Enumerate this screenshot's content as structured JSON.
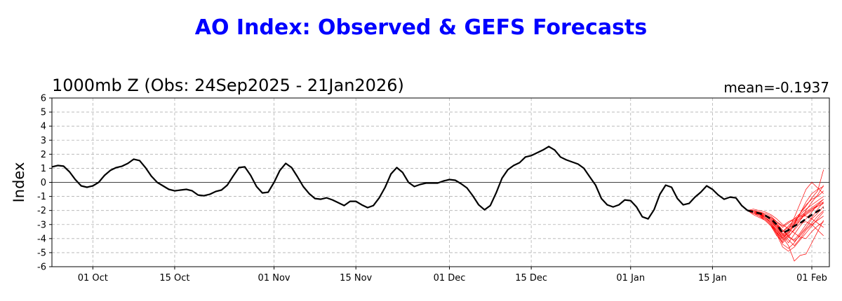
{
  "header": {
    "title": "AO Index: Observed & GEFS Forecasts",
    "subtitle": "1000mb Z (Obs: 24Sep2025 - 21Jan2026)",
    "mean_label": "mean=-0.1937"
  },
  "colors": {
    "title": "#0000ff",
    "observed": "#000000",
    "members": "#ff0000",
    "grid": "#b0b0b0"
  },
  "chart_data": {
    "type": "line",
    "ylabel": "Index",
    "ylim": [
      -6,
      6
    ],
    "yticks": [
      -6,
      -5,
      -4,
      -3,
      -2,
      -1,
      0,
      1,
      2,
      3,
      4,
      5,
      6
    ],
    "x_start": "2025-09-24",
    "x_end": "2026-02-04",
    "xticks": [
      {
        "date": "2025-10-01",
        "label": "01 Oct"
      },
      {
        "date": "2025-10-15",
        "label": "15 Oct"
      },
      {
        "date": "2025-11-01",
        "label": "01 Nov"
      },
      {
        "date": "2025-11-15",
        "label": "15 Nov"
      },
      {
        "date": "2025-12-01",
        "label": "01 Dec"
      },
      {
        "date": "2025-12-15",
        "label": "15 Dec"
      },
      {
        "date": "2026-01-01",
        "label": "01 Jan"
      },
      {
        "date": "2026-01-15",
        "label": "15 Jan"
      },
      {
        "date": "2026-02-01",
        "label": "01 Feb"
      }
    ],
    "grid": true,
    "zero_line": true,
    "observed": {
      "start": "2025-09-24",
      "values": [
        1.1,
        1.2,
        1.15,
        0.75,
        0.2,
        -0.25,
        -0.35,
        -0.25,
        0.0,
        0.5,
        0.85,
        1.05,
        1.15,
        1.35,
        1.65,
        1.55,
        1.05,
        0.45,
        0.0,
        -0.25,
        -0.5,
        -0.6,
        -0.55,
        -0.5,
        -0.6,
        -0.9,
        -0.95,
        -0.85,
        -0.65,
        -0.55,
        -0.2,
        0.45,
        1.05,
        1.1,
        0.5,
        -0.3,
        -0.75,
        -0.7,
        0.0,
        0.85,
        1.35,
        1.05,
        0.4,
        -0.3,
        -0.8,
        -1.15,
        -1.2,
        -1.1,
        -1.25,
        -1.45,
        -1.65,
        -1.35,
        -1.35,
        -1.6,
        -1.8,
        -1.65,
        -1.1,
        -0.35,
        0.6,
        1.05,
        0.7,
        0.0,
        -0.3,
        -0.15,
        -0.05,
        -0.05,
        -0.05,
        0.1,
        0.2,
        0.15,
        -0.1,
        -0.4,
        -0.95,
        -1.6,
        -1.95,
        -1.65,
        -0.75,
        0.3,
        0.9,
        1.2,
        1.4,
        1.8,
        1.9,
        2.1,
        2.3,
        2.55,
        2.3,
        1.8,
        1.6,
        1.45,
        1.3,
        1.0,
        0.4,
        -0.2,
        -1.15,
        -1.6,
        -1.75,
        -1.6,
        -1.25,
        -1.3,
        -1.75,
        -2.45,
        -2.6,
        -1.95,
        -0.85,
        -0.2,
        -0.35,
        -1.15,
        -1.6,
        -1.5,
        -1.05,
        -0.7,
        -0.25,
        -0.5,
        -0.9,
        -1.2,
        -1.05,
        -1.1,
        -1.65,
        -2.0
      ]
    },
    "forecast_start": "2026-01-21",
    "ensemble_mean": {
      "values": [
        -2.0,
        -2.1,
        -2.2,
        -2.35,
        -2.6,
        -3.0,
        -3.6,
        -3.4,
        -3.1,
        -2.9,
        -2.6,
        -2.3,
        -2.05,
        -1.8
      ]
    },
    "members": [
      [
        -2.0,
        -2.1,
        -2.3,
        -2.5,
        -2.9,
        -3.5,
        -4.3,
        -3.9,
        -3.3,
        -2.7,
        -2.0,
        -1.4,
        -0.9,
        -0.2
      ],
      [
        -2.0,
        -2.0,
        -2.1,
        -2.2,
        -2.4,
        -2.8,
        -3.2,
        -2.9,
        -2.6,
        -2.2,
        -1.7,
        -1.1,
        -0.6,
        0.9
      ],
      [
        -2.0,
        -2.2,
        -2.4,
        -2.6,
        -3.0,
        -3.7,
        -4.6,
        -4.9,
        -4.6,
        -4.1,
        -3.6,
        -3.1,
        -2.6,
        -2.1
      ],
      [
        -2.0,
        -1.9,
        -2.0,
        -2.1,
        -2.3,
        -2.6,
        -3.0,
        -3.3,
        -3.6,
        -3.9,
        -4.0,
        -3.5,
        -3.1,
        -2.8
      ],
      [
        -2.0,
        -2.1,
        -2.2,
        -2.4,
        -2.7,
        -3.1,
        -3.5,
        -3.2,
        -2.8,
        -2.3,
        -1.9,
        -1.6,
        -1.3,
        -1.0
      ],
      [
        -2.0,
        -2.3,
        -2.5,
        -2.7,
        -3.1,
        -3.8,
        -4.2,
        -3.7,
        -3.0,
        -2.2,
        -1.4,
        -0.8,
        -0.5,
        -0.3
      ],
      [
        -2.0,
        -2.0,
        -2.1,
        -2.3,
        -2.5,
        -2.9,
        -3.4,
        -3.8,
        -4.2,
        -3.8,
        -3.3,
        -2.9,
        -2.4,
        -2.0
      ],
      [
        -2.0,
        -2.2,
        -2.3,
        -2.5,
        -2.8,
        -3.3,
        -3.9,
        -3.5,
        -3.0,
        -2.6,
        -2.3,
        -2.0,
        -1.7,
        -1.5
      ],
      [
        -2.0,
        -2.1,
        -2.2,
        -2.3,
        -2.6,
        -3.0,
        -3.6,
        -4.1,
        -4.5,
        -4.0,
        -3.4,
        -3.0,
        -2.7,
        -2.4
      ],
      [
        -2.0,
        -2.1,
        -2.3,
        -2.4,
        -2.7,
        -3.2,
        -3.8,
        -3.4,
        -2.5,
        -1.5,
        -0.5,
        0.0,
        -0.4,
        -0.8
      ],
      [
        -2.0,
        -2.2,
        -2.4,
        -2.7,
        -3.1,
        -3.6,
        -4.4,
        -4.7,
        -4.3,
        -3.7,
        -3.2,
        -2.6,
        -2.2,
        -1.7
      ],
      [
        -2.0,
        -2.0,
        -2.2,
        -2.3,
        -2.5,
        -2.8,
        -3.1,
        -2.8,
        -2.6,
        -2.4,
        -2.4,
        -2.6,
        -2.9,
        -3.2
      ],
      [
        -2.0,
        -2.1,
        -2.2,
        -2.5,
        -2.9,
        -3.4,
        -4.0,
        -3.6,
        -3.1,
        -2.7,
        -2.2,
        -1.9,
        -1.6,
        -1.4
      ],
      [
        -2.0,
        -2.1,
        -2.3,
        -2.6,
        -3.0,
        -3.5,
        -4.1,
        -3.8,
        -3.4,
        -2.9,
        -2.8,
        -3.0,
        -3.4,
        -3.8
      ],
      [
        -2.0,
        -2.2,
        -2.3,
        -2.5,
        -2.8,
        -3.2,
        -3.7,
        -4.3,
        -3.7,
        -3.1,
        -2.6,
        -2.1,
        -1.6,
        -1.2
      ],
      [
        -2.0,
        -2.1,
        -2.2,
        -2.4,
        -2.6,
        -3.0,
        -3.5,
        -3.1,
        -2.7,
        -2.4,
        -2.1,
        -1.8,
        -1.5,
        -1.2
      ],
      [
        -2.0,
        -2.0,
        -2.1,
        -2.3,
        -2.6,
        -3.0,
        -3.4,
        -3.9,
        -4.1,
        -3.6,
        -3.0,
        -2.5,
        -1.9,
        -1.4
      ],
      [
        -2.0,
        -2.2,
        -2.4,
        -2.6,
        -3.0,
        -3.6,
        -4.0,
        -3.5,
        -2.9,
        -2.2,
        -1.6,
        -1.2,
        -1.0,
        -0.6
      ],
      [
        -2.0,
        -2.1,
        -2.3,
        -2.5,
        -2.9,
        -3.4,
        -3.9,
        -4.5,
        -5.6,
        -5.2,
        -5.1,
        -4.3,
        -3.5,
        -2.7
      ],
      [
        -2.0,
        -2.0,
        -2.2,
        -2.4,
        -2.7,
        -3.1,
        -3.7,
        -3.3,
        -2.9,
        -2.5,
        -2.2,
        -1.9,
        -1.7,
        -1.5
      ]
    ]
  }
}
